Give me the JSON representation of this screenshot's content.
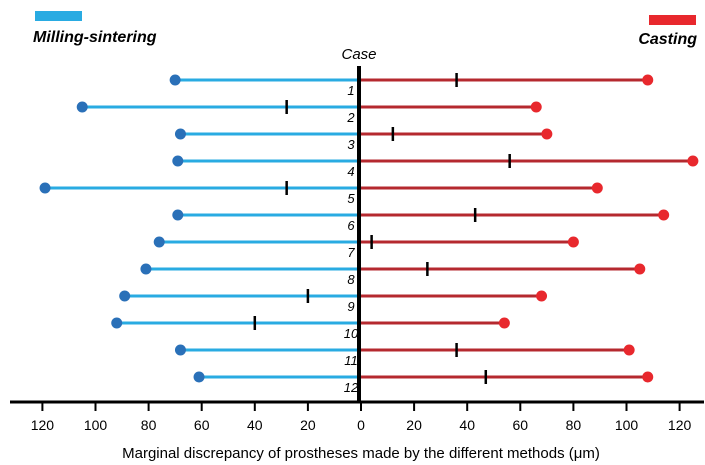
{
  "chart_data": {
    "type": "bar",
    "orientation": "diverging-horizontal",
    "category_title": "Case",
    "categories": [
      "1",
      "2",
      "3",
      "4",
      "5",
      "6",
      "7",
      "8",
      "9",
      "10",
      "11",
      "12"
    ],
    "series": [
      {
        "name": "Milling-sintering",
        "side": "left",
        "color": "#29abe2",
        "dot_color": "#2a70b8",
        "values": [
          70,
          105,
          68,
          69,
          119,
          69,
          76,
          81,
          89,
          92,
          68,
          61
        ],
        "markers": [
          null,
          28,
          null,
          null,
          28,
          null,
          null,
          null,
          20,
          40,
          null,
          null
        ]
      },
      {
        "name": "Casting",
        "side": "right",
        "color": "#b5292f",
        "dot_color": "#e8282d",
        "values": [
          108,
          66,
          70,
          125,
          89,
          114,
          80,
          105,
          68,
          54,
          101,
          108
        ],
        "markers": [
          36,
          null,
          12,
          56,
          null,
          43,
          4,
          25,
          null,
          null,
          36,
          47
        ]
      }
    ],
    "x_axis": {
      "label": "Marginal discrepancy of prostheses made by the different methods (μm)",
      "range": [
        -120,
        120
      ],
      "tick_values": [
        -120,
        -100,
        -80,
        -60,
        -40,
        -20,
        0,
        20,
        40,
        60,
        80,
        100,
        120
      ],
      "tick_labels": [
        "120",
        "100",
        "80",
        "60",
        "40",
        "20",
        "0",
        "20",
        "40",
        "60",
        "80",
        "100",
        "120"
      ]
    },
    "legend": {
      "placement": "top-left and top-right"
    },
    "grid": false
  }
}
